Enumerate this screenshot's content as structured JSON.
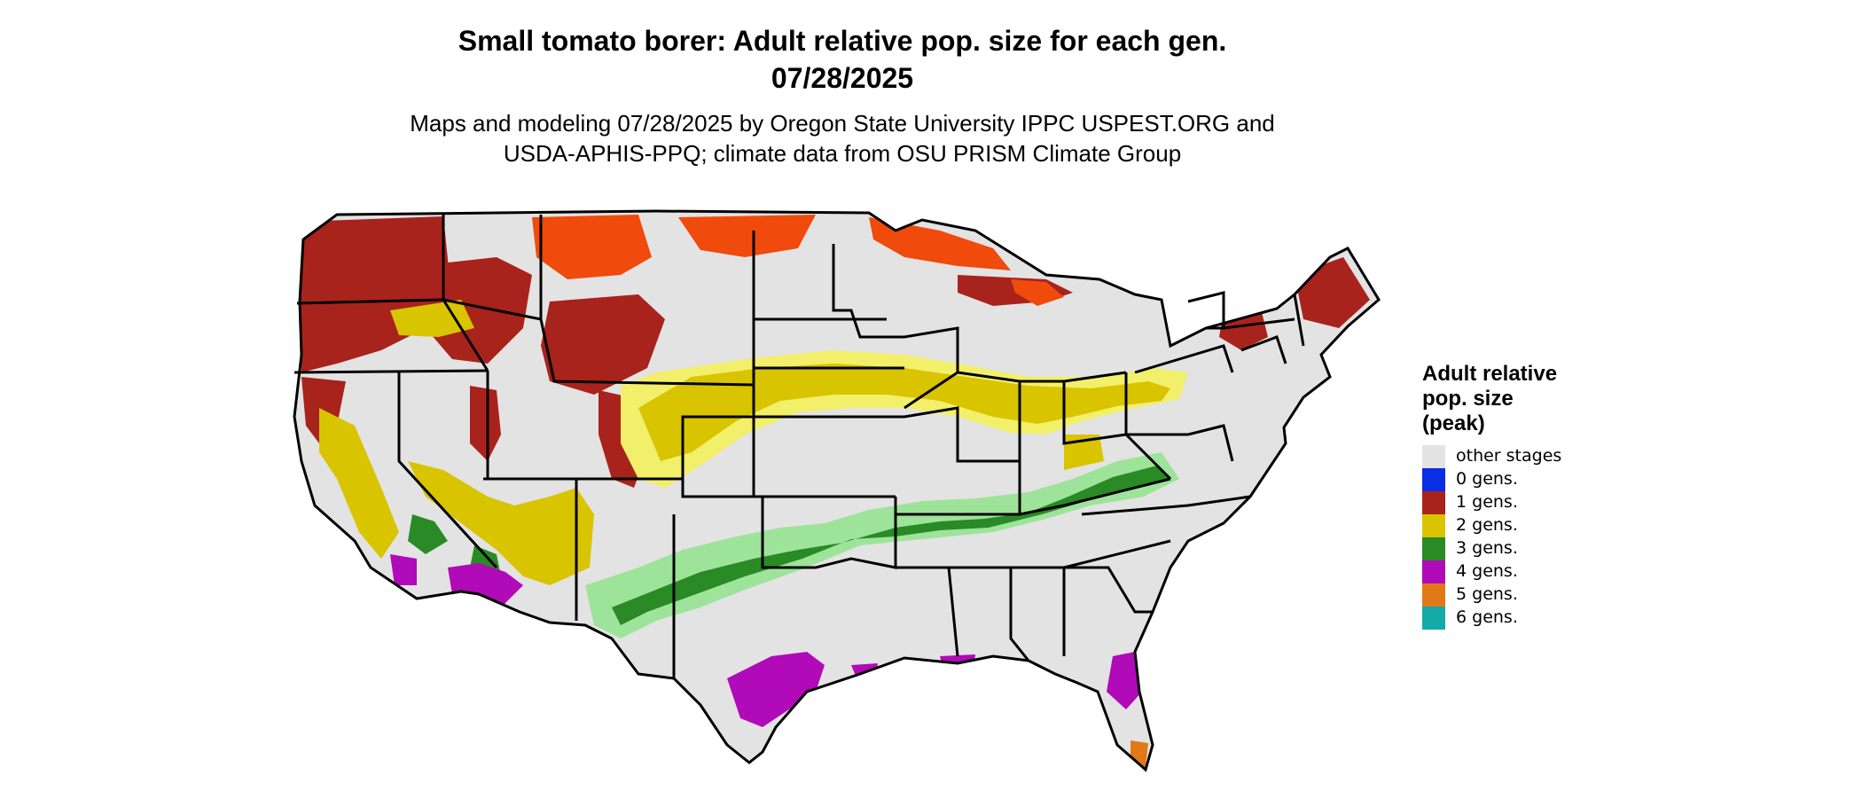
{
  "title": {
    "line1": "Small tomato borer: Adult relative pop. size for each gen.",
    "line2": "07/28/2025"
  },
  "subtitle": {
    "line1": "Maps and modeling 07/28/2025 by Oregon State University IPPC USPEST.ORG and",
    "line2": "USDA-APHIS-PPQ; climate data from OSU PRISM Climate Group"
  },
  "legend": {
    "title_lines": [
      "Adult relative",
      "pop. size",
      "(peak)"
    ],
    "items": [
      {
        "label": "other stages",
        "color": "#e3e3e3"
      },
      {
        "label": "0 gens.",
        "color": "#0a2ee6"
      },
      {
        "label": "1 gens.",
        "color": "#a8231c"
      },
      {
        "label": "2 gens.",
        "color": "#d9c400"
      },
      {
        "label": "3 gens.",
        "color": "#2a8a26"
      },
      {
        "label": "4 gens.",
        "color": "#b10ab8"
      },
      {
        "label": "5 gens.",
        "color": "#e07a16"
      },
      {
        "label": "6 gens.",
        "color": "#13aaa7"
      }
    ]
  },
  "map_colors": {
    "land": "#e3e3e3",
    "border": "#000000",
    "gen1_dark": "#a8231c",
    "gen1_bright": "#f04a0c",
    "gen2": "#d9c400",
    "gen2_light": "#f2ef6a",
    "gen3": "#2a8a26",
    "gen3_light": "#9ee39a",
    "gen4": "#b10ab8",
    "gen5": "#e07a16"
  }
}
